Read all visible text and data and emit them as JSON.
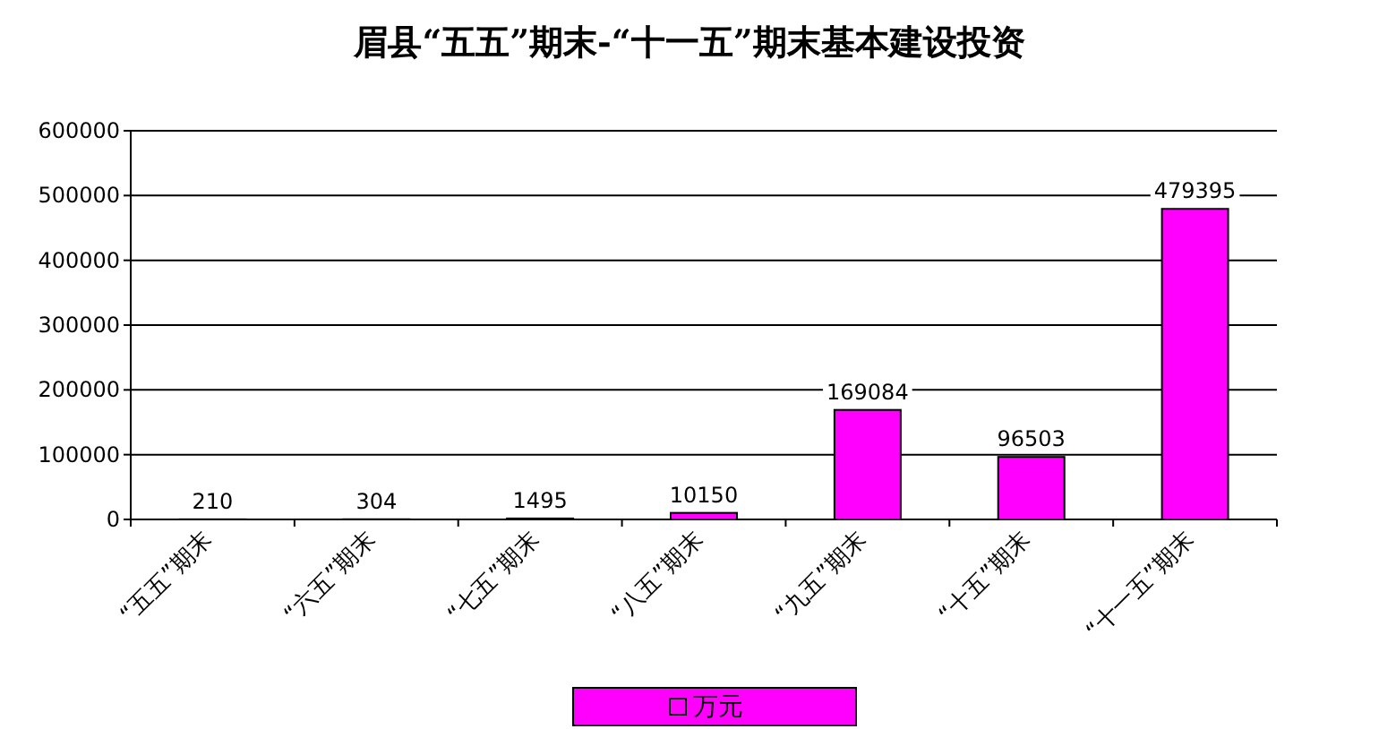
{
  "chart_data": {
    "type": "bar",
    "title": "眉县“五五”期末-“十一五”期末基本建设投资",
    "categories": [
      "“五五”期末",
      "“六五”期末",
      "“七五”期末",
      "“八五”期末",
      "“九五”期末",
      "“十五”期末",
      "“十一五”期末"
    ],
    "series": [
      {
        "name": "万元",
        "color": "#ff00ff",
        "values": [
          210,
          304,
          1495,
          10150,
          169084,
          96503,
          479395
        ]
      }
    ],
    "ylim": [
      0,
      600000
    ],
    "yticks": [
      0,
      100000,
      200000,
      300000,
      400000,
      500000,
      600000
    ],
    "grid": "y",
    "legend": "bottom",
    "data_labels": true
  }
}
